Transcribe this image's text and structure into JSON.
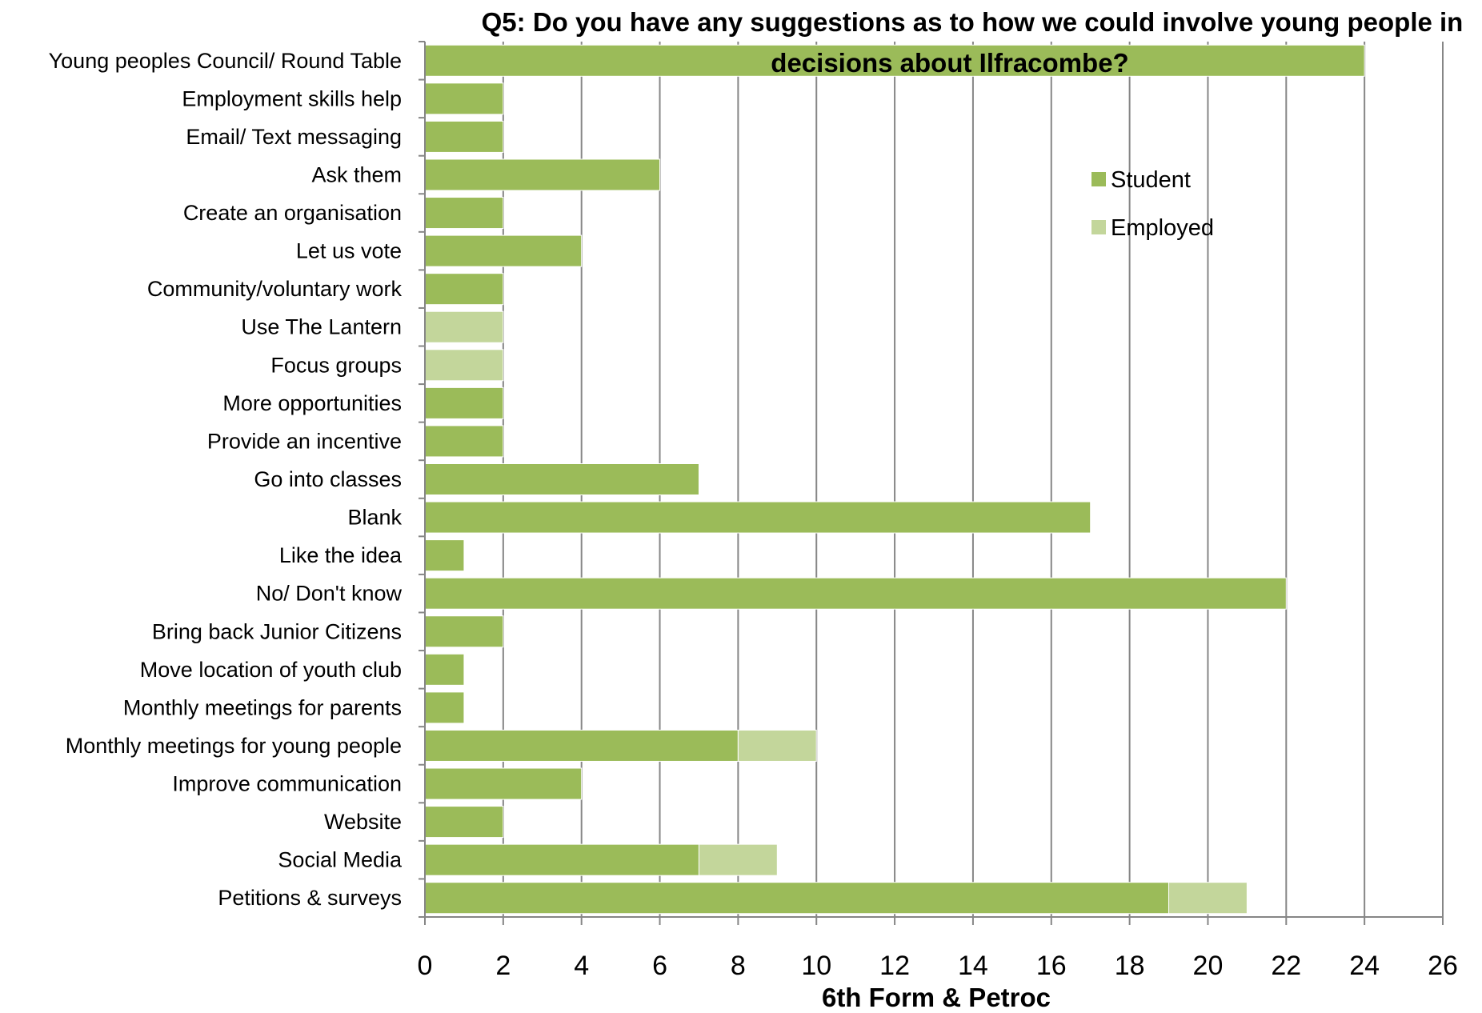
{
  "chart_data": {
    "type": "bar",
    "orientation": "horizontal",
    "stacked": true,
    "title_line1": "Q5: Do you have any suggestions as to how we could involve young people in",
    "title_line2": "decisions about Ilfracombe?",
    "xlabel": "6th Form & Petroc",
    "ylabel": "",
    "xlim": [
      0,
      26
    ],
    "xticks": [
      0,
      2,
      4,
      6,
      8,
      10,
      12,
      14,
      16,
      18,
      20,
      22,
      24,
      26
    ],
    "grid": "vertical",
    "legend_position": "top-right",
    "categories": [
      "Young peoples Council/ Round Table",
      "Employment skills help",
      "Email/ Text messaging",
      "Ask them",
      "Create an organisation",
      "Let us vote",
      "Community/voluntary work",
      "Use The Lantern",
      "Focus groups",
      "More opportunities",
      "Provide an incentive",
      "Go into classes",
      "Blank",
      "Like the idea",
      "No/ Don't know",
      "Bring back Junior Citizens",
      "Move location of youth club",
      "Monthly meetings for parents",
      "Monthly meetings for young people",
      "Improve communication",
      "Website",
      "Social Media",
      "Petitions & surveys"
    ],
    "series": [
      {
        "name": "Student",
        "color": "#9bbb59",
        "values": [
          24,
          2,
          2,
          6,
          2,
          4,
          2,
          0,
          0,
          2,
          2,
          7,
          17,
          1,
          22,
          2,
          1,
          1,
          8,
          4,
          2,
          7,
          19
        ]
      },
      {
        "name": "Employed",
        "color": "#c3d69b",
        "values": [
          0,
          0,
          0,
          0,
          0,
          0,
          0,
          2,
          2,
          0,
          0,
          0,
          0,
          0,
          0,
          0,
          0,
          0,
          2,
          0,
          0,
          2,
          2
        ]
      }
    ]
  },
  "colors": {
    "grid": "#868686",
    "axis": "#868686",
    "bar_border": "#ffffff"
  }
}
